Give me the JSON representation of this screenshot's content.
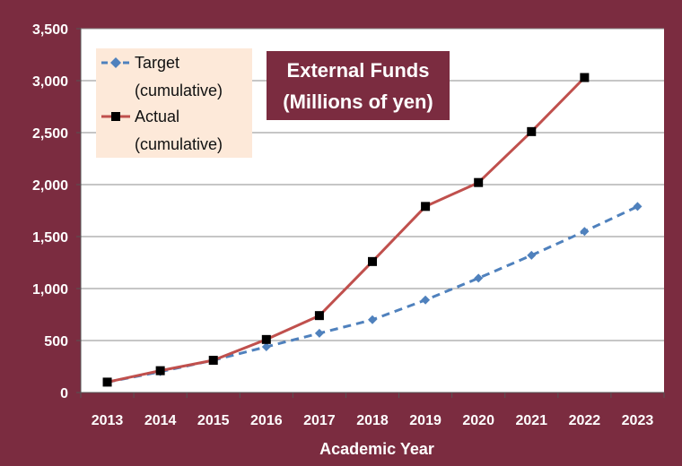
{
  "chart_data": {
    "type": "line",
    "title_lines": [
      "External Funds",
      "(Millions of yen)"
    ],
    "xlabel": "Academic Year",
    "ylabel": "",
    "ylim": [
      0,
      3500
    ],
    "yticks": [
      "0",
      "500",
      "1,000",
      "1,500",
      "2,000",
      "2,500",
      "3,000",
      "3,500"
    ],
    "ytick_values": [
      0,
      500,
      1000,
      1500,
      2000,
      2500,
      3000,
      3500
    ],
    "categories": [
      "2013",
      "2014",
      "2015",
      "2016",
      "2017",
      "2018",
      "2019",
      "2020",
      "2021",
      "2022",
      "2023"
    ],
    "grid": true,
    "legend_position": "top-left",
    "series": [
      {
        "name_lines": [
          "Target",
          "(cumulative)"
        ],
        "color": "#4f81bd",
        "marker": "diamond",
        "line_style": "dashed",
        "values": [
          100,
          200,
          310,
          440,
          570,
          700,
          890,
          1100,
          1320,
          1550,
          1790
        ]
      },
      {
        "name_lines": [
          "Actual",
          "(cumulative)"
        ],
        "color": "#c0504d",
        "marker": "square",
        "line_style": "solid",
        "values": [
          100,
          210,
          310,
          510,
          740,
          1260,
          1790,
          2020,
          2510,
          3030,
          null
        ]
      }
    ]
  },
  "colors": {
    "background": "#7b2c40",
    "plot_area": "#ffffff",
    "legend_bg": "#fde9d9",
    "title_bg": "#7b2c40"
  }
}
